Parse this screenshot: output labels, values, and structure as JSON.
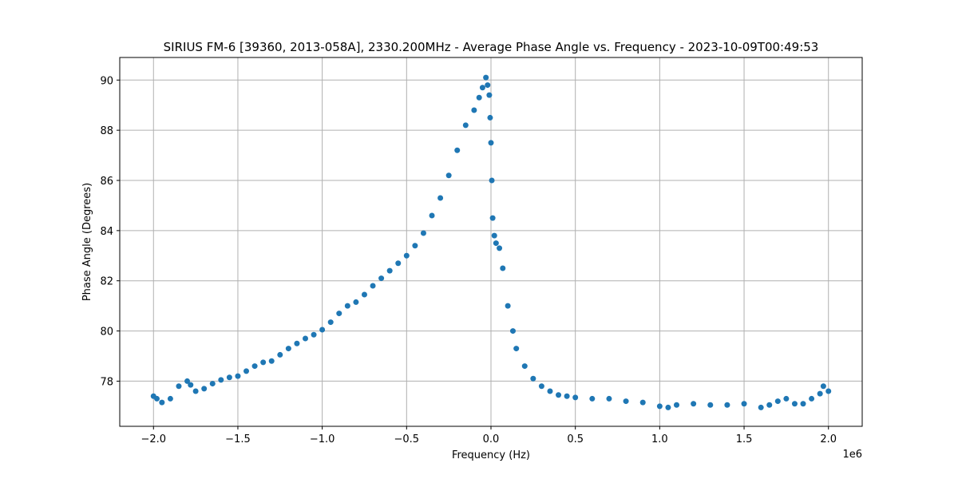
{
  "chart_data": {
    "type": "scatter",
    "title": "SIRIUS FM-6 [39360, 2013-058A], 2330.200MHz - Average Phase Angle vs. Frequency - 2023-10-09T00:49:53",
    "xlabel": "Frequency (Hz)",
    "ylabel": "Phase Angle (Degrees)",
    "x_offset_label": "1e6",
    "xlim": [
      -2.2,
      2.2
    ],
    "ylim": [
      76.2,
      90.9
    ],
    "x_ticks": [
      -2.0,
      -1.5,
      -1.0,
      -0.5,
      0.0,
      0.5,
      1.0,
      1.5,
      2.0
    ],
    "x_tick_labels": [
      "−2.0",
      "−1.5",
      "−1.0",
      "−0.5",
      "0.0",
      "0.5",
      "1.0",
      "1.5",
      "2.0"
    ],
    "y_ticks": [
      78,
      80,
      82,
      84,
      86,
      88,
      90
    ],
    "y_tick_labels": [
      "78",
      "80",
      "82",
      "84",
      "86",
      "88",
      "90"
    ],
    "grid": true,
    "marker_color": "#1f77b4",
    "series": [
      {
        "x": [
          -2.0,
          -1.98,
          -1.95,
          -1.9,
          -1.85,
          -1.8,
          -1.78,
          -1.75,
          -1.7,
          -1.65,
          -1.6,
          -1.55,
          -1.5,
          -1.45,
          -1.4,
          -1.35,
          -1.3,
          -1.25,
          -1.2,
          -1.15,
          -1.1,
          -1.05,
          -1.0,
          -0.95,
          -0.9,
          -0.85,
          -0.8,
          -0.75,
          -0.7,
          -0.65,
          -0.6,
          -0.55,
          -0.5,
          -0.45,
          -0.4,
          -0.35,
          -0.3,
          -0.25,
          -0.2,
          -0.15,
          -0.1,
          -0.07,
          -0.05,
          -0.03,
          -0.02,
          -0.01,
          -0.005,
          0.0,
          0.005,
          0.01,
          0.02,
          0.03,
          0.05,
          0.07,
          0.1,
          0.13,
          0.15,
          0.2,
          0.25,
          0.3,
          0.35,
          0.4,
          0.45,
          0.5,
          0.6,
          0.7,
          0.8,
          0.9,
          1.0,
          1.05,
          1.1,
          1.2,
          1.3,
          1.4,
          1.5,
          1.6,
          1.65,
          1.7,
          1.75,
          1.8,
          1.85,
          1.9,
          1.95,
          1.97,
          2.0
        ],
        "y": [
          77.4,
          77.3,
          77.15,
          77.3,
          77.8,
          78.0,
          77.85,
          77.6,
          77.7,
          77.9,
          78.05,
          78.15,
          78.2,
          78.4,
          78.6,
          78.75,
          78.8,
          79.05,
          79.3,
          79.5,
          79.7,
          79.85,
          80.05,
          80.35,
          80.7,
          81.0,
          81.15,
          81.45,
          81.8,
          82.1,
          82.4,
          82.7,
          83.0,
          83.4,
          83.9,
          84.6,
          85.3,
          86.2,
          87.2,
          88.2,
          88.8,
          89.3,
          89.7,
          90.1,
          89.8,
          89.4,
          88.5,
          87.5,
          86.0,
          84.5,
          83.8,
          83.5,
          83.3,
          82.5,
          81.0,
          80.0,
          79.3,
          78.6,
          78.1,
          77.8,
          77.6,
          77.45,
          77.4,
          77.35,
          77.3,
          77.3,
          77.2,
          77.15,
          77.0,
          76.95,
          77.05,
          77.1,
          77.05,
          77.05,
          77.1,
          76.95,
          77.05,
          77.2,
          77.3,
          77.1,
          77.1,
          77.3,
          77.5,
          77.8,
          77.6
        ]
      }
    ]
  }
}
